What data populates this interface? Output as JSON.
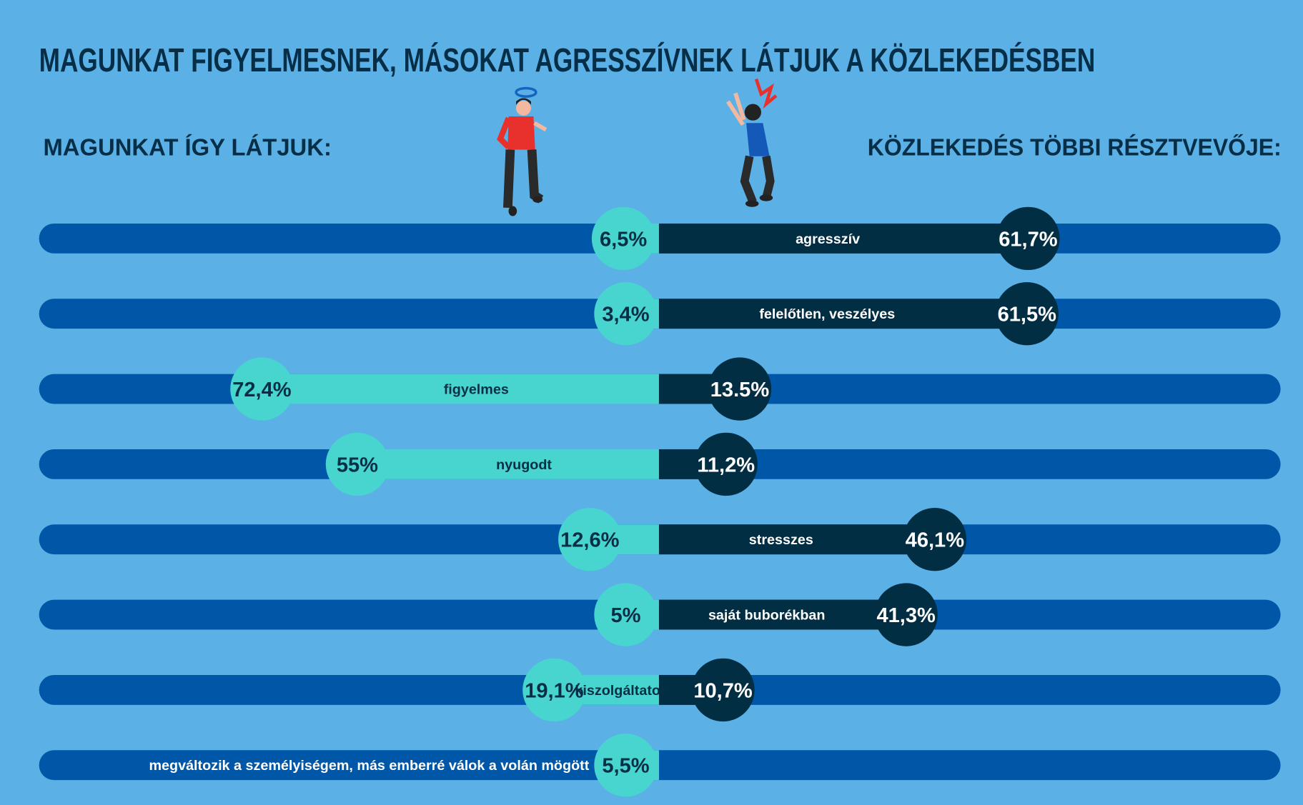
{
  "title": "MAGUNKAT FIGYELMESNEK, MÁSOKAT AGRESSZÍVNEK LÁTJUK A KÖZLEKEDÉSBEN",
  "left_heading": "MAGUNKAT ÍGY LÁTJUK:",
  "right_heading": "KÖZLEKEDÉS TÖBBI RÉSZTVEVŐJE:",
  "colors": {
    "background": "#5bb0e6",
    "track": "#0057a8",
    "self": "#48d5cf",
    "others": "#022e44",
    "title": "#062f47"
  },
  "illustrations": [
    "calm-man-with-halo-icon",
    "angry-woman-with-lightning-icon"
  ],
  "chart_data": {
    "type": "bar",
    "orientation": "diverging-horizontal",
    "series": [
      {
        "name": "MAGUNKAT ÍGY LÁTJUK:",
        "side": "left",
        "color": "#48d5cf"
      },
      {
        "name": "KÖZLEKEDÉS TÖBBI RÉSZTVEVŐJE:",
        "side": "right",
        "color": "#022e44"
      }
    ],
    "rows": [
      {
        "category": "agresszív",
        "self": 6.5,
        "self_label": "6,5%",
        "others": 61.7,
        "others_label": "61,7%"
      },
      {
        "category": "felelőtlen, veszélyes",
        "self": 3.4,
        "self_label": "3,4%",
        "others": 61.5,
        "others_label": "61,5%"
      },
      {
        "category": "figyelmes",
        "self": 72.4,
        "self_label": "72,4%",
        "others": 13.5,
        "others_label": "13.5%"
      },
      {
        "category": "nyugodt",
        "self": 55,
        "self_label": "55%",
        "others": 11.2,
        "others_label": "11,2%"
      },
      {
        "category": "stresszes",
        "self": 12.6,
        "self_label": "12,6%",
        "others": 46.1,
        "others_label": "46,1%"
      },
      {
        "category": "saját buborékban",
        "self": 5,
        "self_label": "5%",
        "others": 41.3,
        "others_label": "41,3%"
      },
      {
        "category": "kiszolgáltatott",
        "self": 19.1,
        "self_label": "19,1%",
        "others": 10.7,
        "others_label": "10,7%"
      },
      {
        "category": "megváltozik a személyiségem, más emberré válok a volán mögött",
        "self": 5.5,
        "self_label": "5,5%",
        "others": null,
        "others_label": null
      }
    ]
  }
}
